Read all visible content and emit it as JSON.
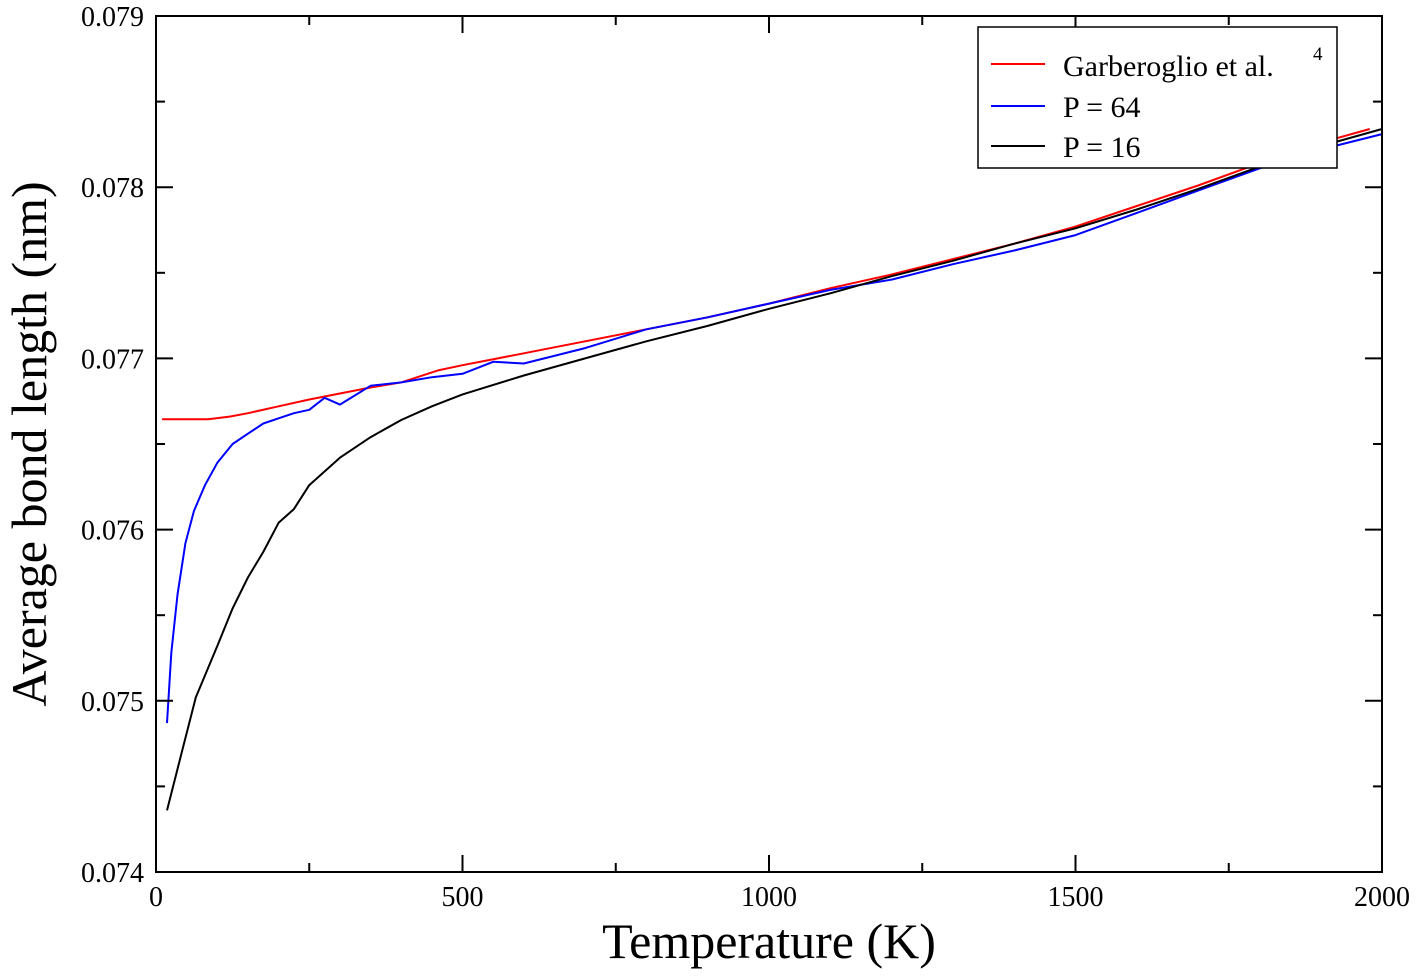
{
  "chart_data": {
    "type": "line",
    "xlabel": "Temperature (K)",
    "ylabel": "Average bond length (nm)",
    "xlim": [
      0,
      2000
    ],
    "ylim": [
      0.074,
      0.079
    ],
    "x_ticks": [
      0,
      500,
      1000,
      1500,
      2000
    ],
    "x_tick_labels": [
      "0",
      "500",
      "1000",
      "1500",
      "2000"
    ],
    "y_ticks": [
      0.074,
      0.075,
      0.076,
      0.077,
      0.078,
      0.079
    ],
    "y_tick_labels": [
      "0.074",
      "0.075",
      "0.076",
      "0.077",
      "0.078",
      "0.079"
    ],
    "grid": false,
    "legend": {
      "position": "top-right",
      "entries": [
        {
          "label": "Garberoglio et al.",
          "superscript": "4"
        },
        {
          "label": "P = 64"
        },
        {
          "label": "P = 16"
        }
      ]
    },
    "series": [
      {
        "name": "Garberoglio et al.",
        "color": "#ff0000",
        "points": [
          [
            10,
            0.076645
          ],
          [
            50,
            0.076645
          ],
          [
            85,
            0.076645
          ],
          [
            120,
            0.07666
          ],
          [
            150,
            0.07668
          ],
          [
            200,
            0.07672
          ],
          [
            250,
            0.07676
          ],
          [
            300,
            0.076795
          ],
          [
            350,
            0.07683
          ],
          [
            400,
            0.07686
          ],
          [
            460,
            0.07693
          ],
          [
            500,
            0.07696
          ],
          [
            600,
            0.07703
          ],
          [
            700,
            0.0771
          ],
          [
            800,
            0.07717
          ],
          [
            900,
            0.07724
          ],
          [
            1000,
            0.07732
          ],
          [
            1100,
            0.07741
          ],
          [
            1200,
            0.07749
          ],
          [
            1300,
            0.07758
          ],
          [
            1400,
            0.07767
          ],
          [
            1500,
            0.07777
          ],
          [
            1600,
            0.07789
          ],
          [
            1700,
            0.07801
          ],
          [
            1800,
            0.07814
          ],
          [
            1900,
            0.07826
          ],
          [
            1980,
            0.07834
          ]
        ]
      },
      {
        "name": "P = 64",
        "color": "#0000ff",
        "points": [
          [
            18,
            0.07487
          ],
          [
            25,
            0.07528
          ],
          [
            35,
            0.07562
          ],
          [
            48,
            0.07592
          ],
          [
            62,
            0.07611
          ],
          [
            80,
            0.07626
          ],
          [
            100,
            0.07639
          ],
          [
            125,
            0.0765
          ],
          [
            150,
            0.07656
          ],
          [
            175,
            0.07662
          ],
          [
            200,
            0.07665
          ],
          [
            225,
            0.07668
          ],
          [
            250,
            0.0767
          ],
          [
            275,
            0.07677
          ],
          [
            300,
            0.07673
          ],
          [
            350,
            0.07684
          ],
          [
            400,
            0.07686
          ],
          [
            450,
            0.07689
          ],
          [
            500,
            0.07691
          ],
          [
            550,
            0.07698
          ],
          [
            600,
            0.07697
          ],
          [
            700,
            0.07706
          ],
          [
            800,
            0.07717
          ],
          [
            900,
            0.07724
          ],
          [
            1000,
            0.07732
          ],
          [
            1100,
            0.0774
          ],
          [
            1200,
            0.07746
          ],
          [
            1300,
            0.07755
          ],
          [
            1400,
            0.07763
          ],
          [
            1500,
            0.07772
          ],
          [
            1600,
            0.07785
          ],
          [
            1700,
            0.07798
          ],
          [
            1800,
            0.07811
          ],
          [
            1900,
            0.07822
          ],
          [
            2000,
            0.07831
          ]
        ]
      },
      {
        "name": "P = 16",
        "color": "#000000",
        "points": [
          [
            18,
            0.07436
          ],
          [
            40,
            0.07467
          ],
          [
            65,
            0.07502
          ],
          [
            100,
            0.07532
          ],
          [
            125,
            0.07554
          ],
          [
            150,
            0.07572
          ],
          [
            175,
            0.07587
          ],
          [
            200,
            0.07604
          ],
          [
            225,
            0.07612
          ],
          [
            250,
            0.07626
          ],
          [
            300,
            0.07642
          ],
          [
            350,
            0.07654
          ],
          [
            400,
            0.07664
          ],
          [
            450,
            0.07672
          ],
          [
            500,
            0.07679
          ],
          [
            600,
            0.0769
          ],
          [
            700,
            0.077
          ],
          [
            800,
            0.0771
          ],
          [
            900,
            0.07719
          ],
          [
            1000,
            0.07729
          ],
          [
            1100,
            0.07738
          ],
          [
            1200,
            0.07748
          ],
          [
            1300,
            0.07757
          ],
          [
            1400,
            0.07767
          ],
          [
            1500,
            0.07776
          ],
          [
            1600,
            0.07787
          ],
          [
            1700,
            0.07799
          ],
          [
            1800,
            0.07812
          ],
          [
            1900,
            0.07824
          ],
          [
            2000,
            0.07834
          ]
        ]
      }
    ]
  }
}
